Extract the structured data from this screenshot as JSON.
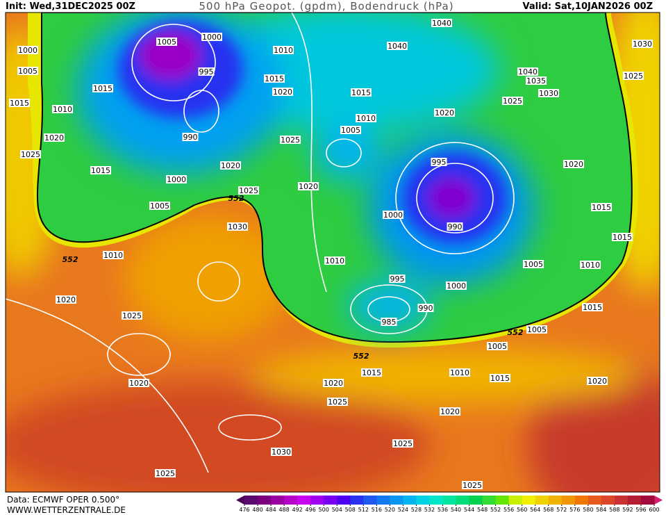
{
  "header": {
    "init": "Init: Wed,31DEC2025 00Z",
    "title": "500 hPa Geopot. (gpdm), Bodendruck (hPa)",
    "valid": "Valid: Sat,10JAN2026 00Z"
  },
  "footer": {
    "source": "Data: ECMWF OPER 0.500°",
    "site": "WWW.WETTERZENTRALE.DE"
  },
  "legend": {
    "values": [
      476,
      480,
      484,
      488,
      492,
      496,
      500,
      504,
      508,
      512,
      516,
      520,
      524,
      528,
      532,
      536,
      540,
      544,
      548,
      552,
      556,
      560,
      564,
      568,
      572,
      576,
      580,
      584,
      588,
      592,
      596,
      600
    ],
    "colors": [
      "#5a0a6e",
      "#7a007f",
      "#9a00a0",
      "#b400c8",
      "#c800f0",
      "#a000f0",
      "#7800f0",
      "#5000f0",
      "#2832f0",
      "#1e5af0",
      "#1478f0",
      "#0a96f0",
      "#00b4f0",
      "#00d2e6",
      "#00e6c8",
      "#00e6a0",
      "#00dc78",
      "#00d250",
      "#32dc32",
      "#64e600",
      "#c8f000",
      "#f0f000",
      "#f0d200",
      "#f0b400",
      "#f09600",
      "#f07800",
      "#e65a1e",
      "#dc4628",
      "#c83232",
      "#b41e32",
      "#a00a3c"
    ]
  },
  "isobar_labels": [
    1000,
    1005,
    1015,
    1025,
    1020,
    1010,
    1015,
    1015,
    1005,
    1000,
    995,
    990,
    1000,
    1005,
    1020,
    1025,
    1030,
    1010,
    1015,
    1020,
    1025,
    1020,
    1015,
    1010,
    1005,
    1040,
    1040,
    1030,
    1025,
    1040,
    1035,
    1030,
    1025,
    1020,
    995,
    990,
    1000,
    1020,
    1015,
    1015,
    1010,
    1005,
    1000,
    995,
    990,
    985,
    1010,
    1005,
    1005,
    1015,
    1010,
    1015,
    1020,
    1015,
    1020,
    1025,
    1020,
    1025,
    1030,
    1025,
    1020,
    1025,
    1020,
    1010,
    1025
  ],
  "height_labels": [
    552,
    552,
    552,
    552
  ]
}
